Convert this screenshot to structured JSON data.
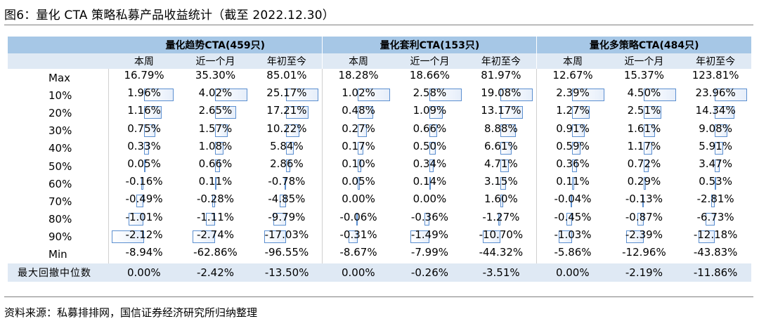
{
  "title": "图6：量化 CTA 策略私募产品收益统计（截至 2022.12.30）",
  "source": "资料来源：私募排排网，国信证券经济研究所归纳整理",
  "groups": [
    {
      "label": "量化趋势CTA(459只)"
    },
    {
      "label": "量化套利CTA(153只)"
    },
    {
      "label": "量化多策略CTA(484只)"
    }
  ],
  "subheaders": [
    "本周",
    "近一个月",
    "年初至今"
  ],
  "rows": [
    {
      "label": "Max",
      "values": [
        "16.79%",
        "35.30%",
        "85.01%",
        "18.28%",
        "18.66%",
        "81.97%",
        "12.67%",
        "15.37%",
        "123.81%"
      ]
    },
    {
      "label": "10%",
      "values": [
        "1.96%",
        "4.02%",
        "25.17%",
        "1.02%",
        "2.58%",
        "19.08%",
        "2.39%",
        "4.50%",
        "23.96%"
      ]
    },
    {
      "label": "20%",
      "values": [
        "1.16%",
        "2.65%",
        "17.21%",
        "0.48%",
        "1.09%",
        "13.17%",
        "1.27%",
        "2.51%",
        "14.34%"
      ]
    },
    {
      "label": "30%",
      "values": [
        "0.75%",
        "1.57%",
        "10.22%",
        "0.27%",
        "0.66%",
        "8.88%",
        "0.91%",
        "1.61%",
        "9.08%"
      ]
    },
    {
      "label": "40%",
      "values": [
        "0.33%",
        "1.08%",
        "5.84%",
        "0.17%",
        "0.50%",
        "6.61%",
        "0.59%",
        "1.17%",
        "5.91%"
      ]
    },
    {
      "label": "50%",
      "values": [
        "0.05%",
        "0.66%",
        "2.86%",
        "0.10%",
        "0.34%",
        "4.71%",
        "0.36%",
        "0.72%",
        "3.47%"
      ]
    },
    {
      "label": "60%",
      "values": [
        "-0.16%",
        "0.11%",
        "-0.78%",
        "0.05%",
        "0.14%",
        "3.15%",
        "0.11%",
        "0.29%",
        "0.53%"
      ]
    },
    {
      "label": "70%",
      "values": [
        "-0.49%",
        "-0.28%",
        "-4.85%",
        "0.00%",
        "0.00%",
        "1.60%",
        "-0.04%",
        "-0.13%",
        "-2.81%"
      ]
    },
    {
      "label": "80%",
      "values": [
        "-1.01%",
        "-1.11%",
        "-9.79%",
        "-0.06%",
        "-0.36%",
        "-1.27%",
        "-0.45%",
        "-0.87%",
        "-6.73%"
      ]
    },
    {
      "label": "90%",
      "values": [
        "-2.12%",
        "-2.74%",
        "-17.03%",
        "-0.31%",
        "-1.49%",
        "-10.70%",
        "-1.03%",
        "-2.39%",
        "-12.18%"
      ]
    },
    {
      "label": "Min",
      "values": [
        "-8.94%",
        "-62.86%",
        "-96.55%",
        "-8.67%",
        "-7.99%",
        "-44.32%",
        "-5.86%",
        "-12.96%",
        "-43.83%"
      ]
    }
  ],
  "footer_row": {
    "label": "最大回撤中位数",
    "values": [
      "0.00%",
      "-2.42%",
      "-13.50%",
      "0.00%",
      "-0.26%",
      "-3.51%",
      "0.00%",
      "-2.19%",
      "-11.86%"
    ]
  },
  "colors": {
    "header_dark": "#a6c7e6",
    "header_light": "#dfe9f4",
    "bar_border": "#5b8fd0"
  }
}
